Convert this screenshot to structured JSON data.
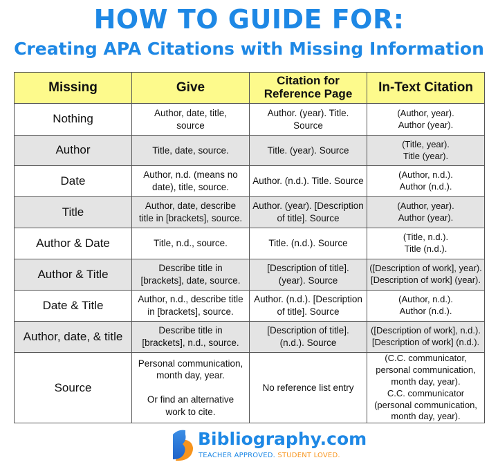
{
  "title": "HOW TO GUIDE FOR:",
  "subtitle": "Creating APA Citations with Missing Information",
  "table": {
    "headers": [
      "Missing",
      "Give",
      "Citation for\nReference Page",
      "In-Text Citation"
    ],
    "rows": [
      {
        "missing": "Nothing",
        "give": "Author, date, title,\nsource",
        "reference": "Author. (year). Title. Source",
        "intext": "(Author, year).\nAuthor (year)."
      },
      {
        "missing": "Author",
        "give": "Title, date, source.",
        "reference": "Title. (year). Source",
        "intext": "(Title, year).\nTitle (year)."
      },
      {
        "missing": "Date",
        "give": "Author, n.d. (means no\ndate), title, source.",
        "reference": "Author. (n.d.). Title. Source",
        "intext": "(Author, n.d.).\nAuthor (n.d.)."
      },
      {
        "missing": "Title",
        "give": "Author, date, describe\ntitle in [brackets], source.",
        "reference": "Author. (year). [Description\nof title]. Source",
        "intext": "(Author, year).\nAuthor (year)."
      },
      {
        "missing": "Author & Date",
        "give": "Title, n.d., source.",
        "reference": "Title. (n.d.). Source",
        "intext": "(Title, n.d.).\nTitle (n.d.)."
      },
      {
        "missing": "Author & Title",
        "give": "Describe title in\n[brackets], date, source.",
        "reference": "[Description of title].\n(year). Source",
        "intext": "([Description of work], year).\n[Description of work] (year)."
      },
      {
        "missing": "Date & Title",
        "give": "Author, n.d., describe title\nin [brackets], source.",
        "reference": "Author. (n.d.). [Description\nof title]. Source",
        "intext": "(Author, n.d.).\nAuthor (n.d.)."
      },
      {
        "missing": "Author, date, & title",
        "give": "Describe title in\n[brackets], n.d., source.",
        "reference": "[Description of title].\n(n.d.). Source",
        "intext": "([Description of work], n.d.).\n[Description of work] (n.d.)."
      },
      {
        "missing": "Source",
        "give": "Personal communication,\nmonth day, year.\n\nOr find an alternative\nwork to cite.",
        "reference": "No reference list entry",
        "intext": "(C.C. communicator,\npersonal communication,\nmonth day, year).\nC.C. communicator\n(personal communication,\nmonth day, year)."
      }
    ]
  },
  "footer": {
    "brand": "Bibliography.com",
    "tagline_1": "TEACHER APPROVED.",
    "tagline_2": "STUDENT LOVED.",
    "brand_color": "#1e88e5",
    "accent_color": "#f7941d"
  },
  "colors": {
    "header_bg": "#fdfa8c",
    "alt_row_bg": "#e4e4e4",
    "title": "#1e88e5"
  }
}
